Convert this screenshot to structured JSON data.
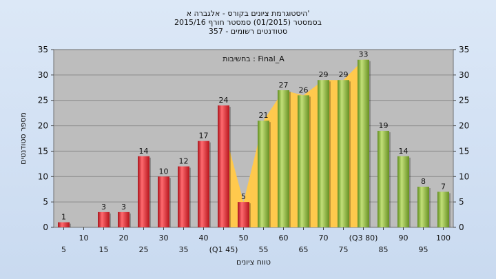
{
  "chart_data": {
    "type": "bar",
    "title": [
      "היסטוגרמת ציונים בקורס - אלגברה א'",
      "בסמסטר  (01/2015)  סמסטר חורף 2015/16",
      "סטודנטים רשומים - 357"
    ],
    "annotation": "בחשיבות : Final_A",
    "xlabel": "טווח ציונים",
    "ylabel": "מספר סטודנטים",
    "ylim": [
      0,
      35
    ],
    "yticks": [
      0,
      5,
      10,
      15,
      20,
      25,
      30,
      35
    ],
    "grid": true,
    "categories": [
      "5",
      "10",
      "15",
      "20",
      "25",
      "30",
      "35",
      "40",
      "(Q1 45)",
      "50",
      "55",
      "60",
      "65",
      "70",
      "75",
      "(Q3 80)",
      "85",
      "90",
      "95",
      "100"
    ],
    "values": [
      1,
      0,
      3,
      3,
      14,
      10,
      12,
      17,
      24,
      5,
      21,
      27,
      26,
      29,
      29,
      33,
      19,
      14,
      8,
      7
    ],
    "data_labels": [
      "1",
      "",
      "3",
      "3",
      "14",
      "10",
      "12",
      "17",
      "24",
      "5",
      "21",
      "27",
      "26",
      "29",
      "29",
      "33",
      "19",
      "14",
      "8",
      "7"
    ],
    "bar_colors": [
      "red",
      "red",
      "red",
      "red",
      "red",
      "red",
      "red",
      "red",
      "red",
      "red",
      "green",
      "green",
      "green",
      "green",
      "green",
      "green",
      "green",
      "green",
      "green",
      "green"
    ],
    "iqr_band": {
      "from_index": 8,
      "to_index": 15,
      "color": "#ffc94d"
    },
    "colors": {
      "red": "#e0242b",
      "green": "#8dbb3a",
      "plot_bg": "#bdbdbd",
      "band": "#ffc94d"
    }
  }
}
